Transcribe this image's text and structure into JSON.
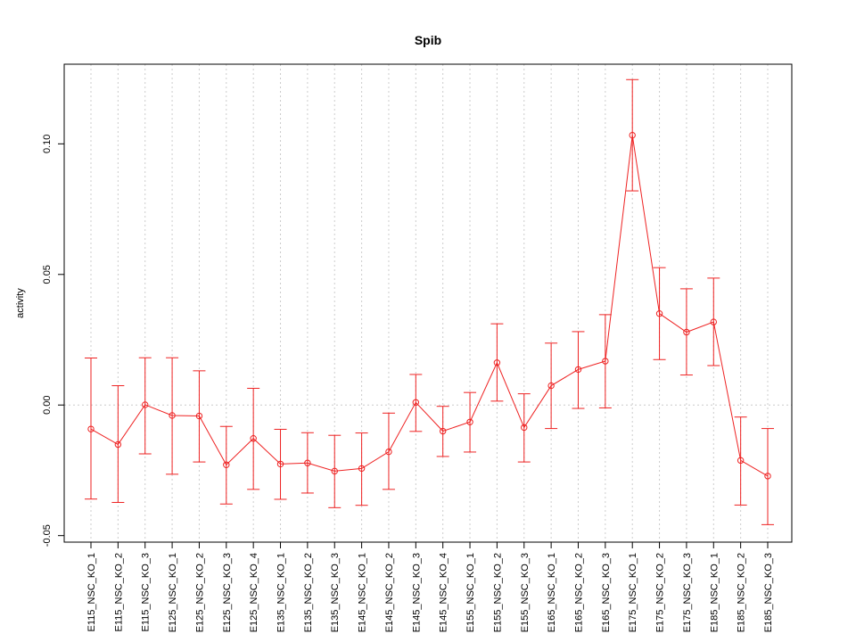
{
  "chart_data": {
    "type": "line",
    "title": "Spib",
    "xlabel": "",
    "ylabel": "activity",
    "ylim": [
      -0.0525,
      0.1305
    ],
    "yticks": [
      -0.05,
      0.0,
      0.05,
      0.1
    ],
    "ytick_labels": [
      "-0.05",
      "0.00",
      "0.05",
      "0.10"
    ],
    "grid": true,
    "error_bars": true,
    "color": "#ee2222",
    "grid_color": "#cccccc",
    "categories": [
      "E115_NSC_KO_1",
      "E115_NSC_KO_2",
      "E115_NSC_KO_3",
      "E125_NSC_KO_1",
      "E125_NSC_KO_2",
      "E125_NSC_KO_3",
      "E125_NSC_KO_4",
      "E135_NSC_KO_1",
      "E135_NSC_KO_2",
      "E135_NSC_KO_3",
      "E145_NSC_KO_1",
      "E145_NSC_KO_2",
      "E145_NSC_KO_3",
      "E145_NSC_KO_4",
      "E155_NSC_KO_1",
      "E155_NSC_KO_2",
      "E155_NSC_KO_3",
      "E165_NSC_KO_1",
      "E165_NSC_KO_2",
      "E165_NSC_KO_3",
      "E175_NSC_KO_1",
      "E175_NSC_KO_2",
      "E175_NSC_KO_3",
      "E185_NSC_KO_1",
      "E185_NSC_KO_2",
      "E185_NSC_KO_3"
    ],
    "series": [
      {
        "values": [
          -0.0092,
          -0.0151,
          0.0001,
          -0.004,
          -0.0042,
          -0.0229,
          -0.0128,
          -0.0226,
          -0.0222,
          -0.0253,
          -0.0243,
          -0.0179,
          0.001,
          -0.01,
          -0.0065,
          0.0162,
          -0.0086,
          0.0074,
          0.0136,
          0.0168,
          0.1033,
          0.035,
          0.0279,
          0.0318,
          -0.0212,
          -0.0272
        ],
        "upper": [
          0.018,
          0.0074,
          0.0181,
          0.0181,
          0.0131,
          -0.0082,
          0.0064,
          -0.0093,
          -0.0106,
          -0.0116,
          -0.0107,
          -0.0031,
          0.0117,
          -0.0005,
          0.0048,
          0.0311,
          0.0043,
          0.0237,
          0.0281,
          0.0346,
          0.1246,
          0.0526,
          0.0445,
          0.0486,
          -0.0046,
          -0.009
        ],
        "lower": [
          -0.036,
          -0.0373,
          -0.0187,
          -0.0265,
          -0.0218,
          -0.0379,
          -0.0323,
          -0.0361,
          -0.0337,
          -0.0393,
          -0.0384,
          -0.0323,
          -0.0101,
          -0.0197,
          -0.018,
          0.0015,
          -0.0218,
          -0.009,
          -0.0013,
          -0.0011,
          0.082,
          0.0174,
          0.0115,
          0.0151,
          -0.0383,
          -0.0458
        ]
      }
    ]
  }
}
